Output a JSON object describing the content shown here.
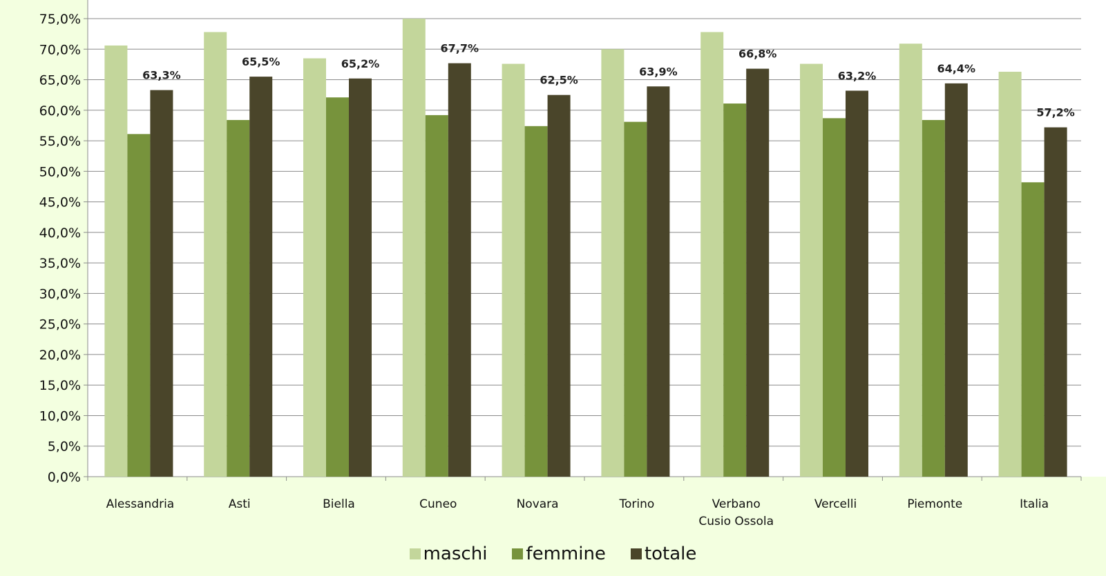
{
  "chart_data": {
    "type": "bar",
    "categories": [
      [
        "Alessandria"
      ],
      [
        "Asti"
      ],
      [
        "Biella"
      ],
      [
        "Cuneo"
      ],
      [
        "Novara"
      ],
      [
        "Torino"
      ],
      [
        "Verbano",
        "Cusio Ossola"
      ],
      [
        "Vercelli"
      ],
      [
        "Piemonte"
      ],
      [
        "Italia"
      ]
    ],
    "series": [
      {
        "name": "maschi",
        "color": "#c3d69b",
        "values": [
          70.6,
          72.8,
          68.5,
          75.0,
          67.6,
          70.0,
          72.8,
          67.6,
          70.9,
          66.3
        ]
      },
      {
        "name": "femmine",
        "color": "#77933c",
        "values": [
          56.1,
          58.4,
          62.1,
          59.2,
          57.4,
          58.1,
          61.1,
          58.7,
          58.4,
          48.2
        ]
      },
      {
        "name": "totale",
        "color": "#4a452a",
        "values": [
          63.3,
          65.5,
          65.2,
          67.7,
          62.5,
          63.9,
          66.8,
          63.2,
          64.4,
          57.2
        ]
      }
    ],
    "data_labels": [
      "63,3%",
      "65,5%",
      "65,2%",
      "67,7%",
      "62,5%",
      "63,9%",
      "66,8%",
      "63,2%",
      "64,4%",
      "57,2%"
    ],
    "y_ticks": [
      "0,0%",
      "5,0%",
      "10,0%",
      "15,0%",
      "20,0%",
      "25,0%",
      "30,0%",
      "35,0%",
      "40,0%",
      "45,0%",
      "50,0%",
      "55,0%",
      "60,0%",
      "65,0%",
      "70,0%",
      "75,0%"
    ],
    "ylim": [
      0,
      75
    ],
    "y_step": 5,
    "grid": true,
    "legend_position": "bottom"
  }
}
